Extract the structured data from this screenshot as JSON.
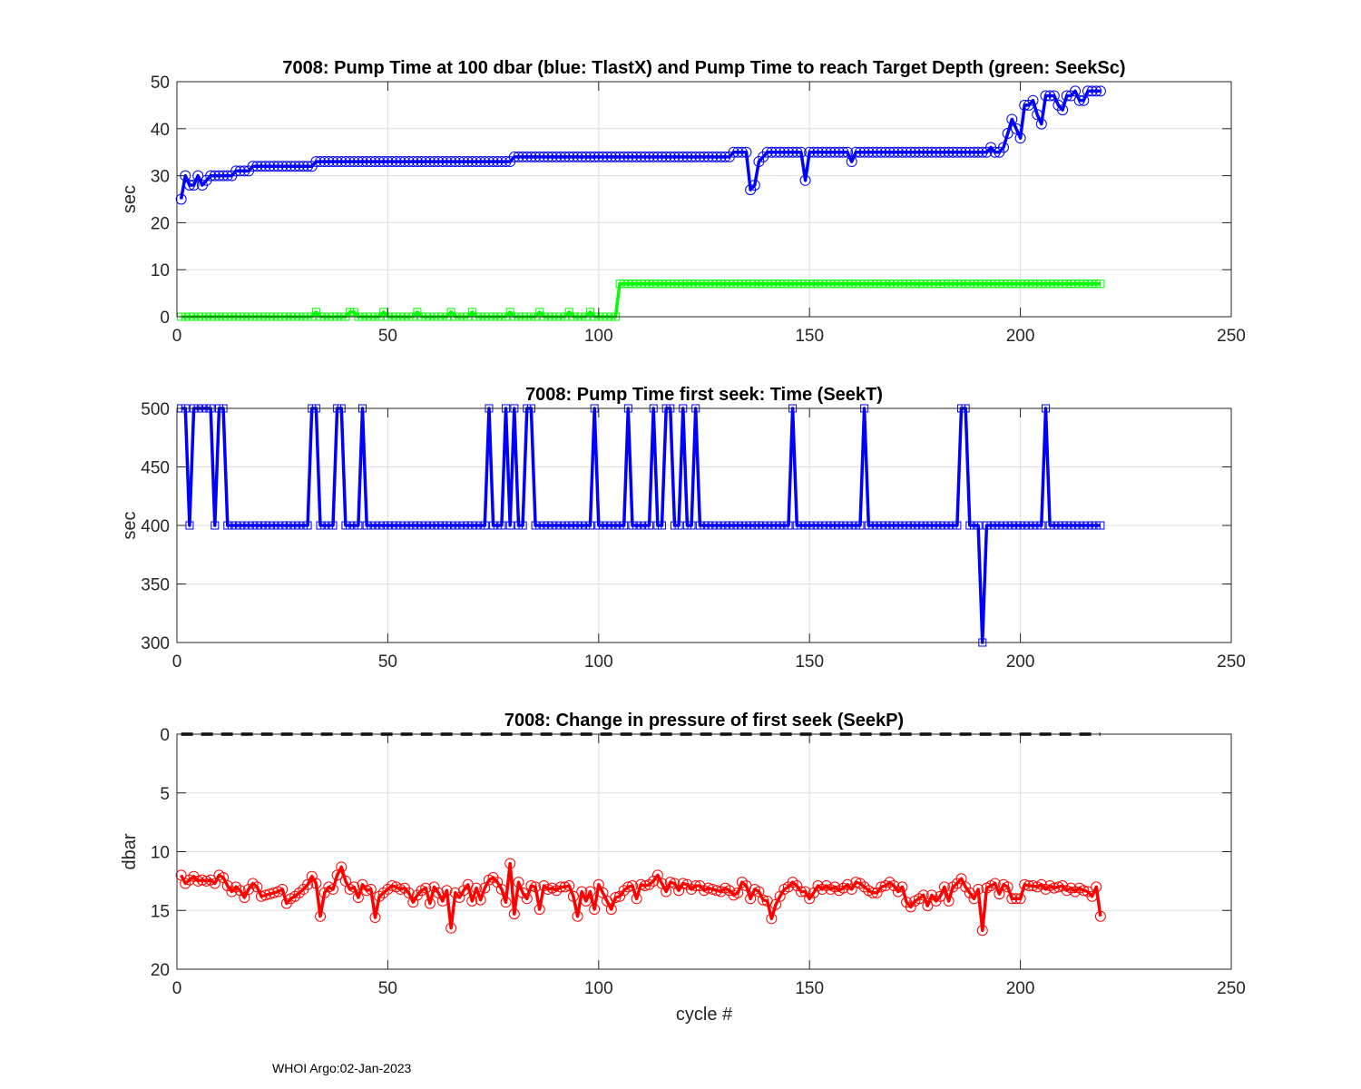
{
  "footer": "WHOI Argo:02-Jan-2023",
  "chart_data": [
    {
      "type": "line",
      "title": "7008:  Pump Time at 100 dbar (blue: TlastX) and Pump Time to reach Target Depth (green: SeekSc)",
      "xlabel": "",
      "ylabel": "sec",
      "xlim": [
        0,
        250
      ],
      "ylim": [
        0,
        50
      ],
      "y_reversed": false,
      "xticks": [
        0,
        50,
        100,
        150,
        200,
        250
      ],
      "yticks": [
        0,
        10,
        20,
        30,
        40,
        50
      ],
      "grid": true,
      "series": [
        {
          "name": "TlastX",
          "color": "#0000ff",
          "marker": "circle",
          "x_start": 1,
          "values": [
            25,
            30,
            28,
            28,
            30,
            28,
            29,
            30,
            30,
            30,
            30,
            30,
            30,
            31,
            31,
            31,
            31,
            32,
            32,
            32,
            32,
            32,
            32,
            32,
            32,
            32,
            32,
            32,
            32,
            32,
            32,
            32,
            33,
            33,
            33,
            33,
            33,
            33,
            33,
            33,
            33,
            33,
            33,
            33,
            33,
            33,
            33,
            33,
            33,
            33,
            33,
            33,
            33,
            33,
            33,
            33,
            33,
            33,
            33,
            33,
            33,
            33,
            33,
            33,
            33,
            33,
            33,
            33,
            33,
            33,
            33,
            33,
            33,
            33,
            33,
            33,
            33,
            33,
            33,
            34,
            34,
            34,
            34,
            34,
            34,
            34,
            34,
            34,
            34,
            34,
            34,
            34,
            34,
            34,
            34,
            34,
            34,
            34,
            34,
            34,
            34,
            34,
            34,
            34,
            34,
            34,
            34,
            34,
            34,
            34,
            34,
            34,
            34,
            34,
            34,
            34,
            34,
            34,
            34,
            34,
            34,
            34,
            34,
            34,
            34,
            34,
            34,
            34,
            34,
            34,
            34,
            35,
            35,
            35,
            35,
            27,
            28,
            33,
            34,
            35,
            35,
            35,
            35,
            35,
            35,
            35,
            35,
            35,
            29,
            35,
            35,
            35,
            35,
            35,
            35,
            35,
            35,
            35,
            35,
            33,
            35,
            35,
            35,
            35,
            35,
            35,
            35,
            35,
            35,
            35,
            35,
            35,
            35,
            35,
            35,
            35,
            35,
            35,
            35,
            35,
            35,
            35,
            35,
            35,
            35,
            35,
            35,
            35,
            35,
            35,
            35,
            35,
            36,
            35,
            35,
            36,
            39,
            42,
            40,
            38,
            45,
            45,
            46,
            43,
            41,
            47,
            47,
            47,
            45,
            44,
            47,
            47,
            48,
            46,
            46,
            48,
            48,
            48,
            48
          ]
        },
        {
          "name": "SeekSc",
          "color": "#00ff00",
          "marker": "square",
          "x_start": 1,
          "values": [
            0,
            0,
            0,
            0,
            0,
            0,
            0,
            0,
            0,
            0,
            0,
            0,
            0,
            0,
            0,
            0,
            0,
            0,
            0,
            0,
            0,
            0,
            0,
            0,
            0,
            0,
            0,
            0,
            0,
            0,
            0,
            0,
            1,
            0,
            0,
            0,
            0,
            0,
            0,
            0,
            1,
            1,
            0,
            0,
            0,
            0,
            0,
            0,
            1,
            0,
            0,
            0,
            0,
            0,
            0,
            0,
            1,
            0,
            0,
            0,
            0,
            0,
            0,
            0,
            1,
            0,
            0,
            0,
            0,
            1,
            0,
            0,
            0,
            0,
            0,
            0,
            0,
            0,
            1,
            0,
            0,
            0,
            0,
            0,
            0,
            1,
            0,
            0,
            0,
            0,
            0,
            0,
            1,
            0,
            0,
            0,
            0,
            1,
            0,
            0,
            0,
            0,
            0,
            0,
            7,
            7,
            7,
            7,
            7,
            7,
            7,
            7,
            7,
            7,
            7,
            7,
            7,
            7,
            7,
            7,
            7,
            7,
            7,
            7,
            7,
            7,
            7,
            7,
            7,
            7,
            7,
            7,
            7,
            7,
            7,
            7,
            7,
            7,
            7,
            7,
            7,
            7,
            7,
            7,
            7,
            7,
            7,
            7,
            7,
            7,
            7,
            7,
            7,
            7,
            7,
            7,
            7,
            7,
            7,
            7,
            7,
            7,
            7,
            7,
            7,
            7,
            7,
            7,
            7,
            7,
            7,
            7,
            7,
            7,
            7,
            7,
            7,
            7,
            7,
            7,
            7,
            7,
            7,
            7,
            7,
            7,
            7,
            7,
            7,
            7,
            7,
            7,
            7,
            7,
            7,
            7,
            7,
            7,
            7,
            7,
            7,
            7,
            7,
            7,
            7,
            7,
            7,
            7,
            7,
            7,
            7,
            7,
            7,
            7,
            7,
            7,
            7,
            7,
            7
          ]
        }
      ]
    },
    {
      "type": "line",
      "title": "7008: Pump Time first seek: Time (SeekT)",
      "xlabel": "",
      "ylabel": "sec",
      "xlim": [
        0,
        250
      ],
      "ylim": [
        300,
        500
      ],
      "y_reversed": false,
      "xticks": [
        0,
        50,
        100,
        150,
        200,
        250
      ],
      "yticks": [
        300,
        350,
        400,
        450,
        500
      ],
      "grid": true,
      "series": [
        {
          "name": "SeekT",
          "color": "#0000ff",
          "marker": "square",
          "x_start": 1,
          "values": [
            500,
            500,
            400,
            500,
            500,
            500,
            500,
            500,
            400,
            500,
            500,
            400,
            400,
            400,
            400,
            400,
            400,
            400,
            400,
            400,
            400,
            400,
            400,
            400,
            400,
            400,
            400,
            400,
            400,
            400,
            400,
            500,
            500,
            400,
            400,
            400,
            400,
            500,
            500,
            400,
            400,
            400,
            400,
            500,
            400,
            400,
            400,
            400,
            400,
            400,
            400,
            400,
            400,
            400,
            400,
            400,
            400,
            400,
            400,
            400,
            400,
            400,
            400,
            400,
            400,
            400,
            400,
            400,
            400,
            400,
            400,
            400,
            400,
            500,
            400,
            400,
            400,
            500,
            400,
            500,
            400,
            400,
            500,
            500,
            400,
            400,
            400,
            400,
            400,
            400,
            400,
            400,
            400,
            400,
            400,
            400,
            400,
            400,
            500,
            400,
            400,
            400,
            400,
            400,
            400,
            400,
            500,
            400,
            400,
            400,
            400,
            400,
            500,
            400,
            400,
            500,
            500,
            400,
            400,
            500,
            400,
            400,
            500,
            400,
            400,
            400,
            400,
            400,
            400,
            400,
            400,
            400,
            400,
            400,
            400,
            400,
            400,
            400,
            400,
            400,
            400,
            400,
            400,
            400,
            400,
            500,
            400,
            400,
            400,
            400,
            400,
            400,
            400,
            400,
            400,
            400,
            400,
            400,
            400,
            400,
            400,
            400,
            500,
            400,
            400,
            400,
            400,
            400,
            400,
            400,
            400,
            400,
            400,
            400,
            400,
            400,
            400,
            400,
            400,
            400,
            400,
            400,
            400,
            400,
            400,
            500,
            500,
            400,
            400,
            400,
            300,
            400,
            400,
            400,
            400,
            400,
            400,
            400,
            400,
            400,
            400,
            400,
            400,
            400,
            400,
            500,
            400,
            400,
            400,
            400,
            400,
            400,
            400,
            400,
            400,
            400,
            400,
            400,
            400
          ]
        }
      ]
    },
    {
      "type": "line",
      "title": "7008: Change in pressure of first seek (SeekP)",
      "xlabel": "cycle #",
      "ylabel": "dbar",
      "xlim": [
        0,
        250
      ],
      "ylim": [
        0,
        20
      ],
      "y_reversed": true,
      "xticks": [
        0,
        50,
        100,
        150,
        200,
        250
      ],
      "yticks": [
        0,
        5,
        10,
        15,
        20
      ],
      "grid": true,
      "reference_line": {
        "y": 0,
        "x": [
          1,
          219
        ],
        "color": "#000000",
        "style": "dashed"
      },
      "series": [
        {
          "name": "SeekP",
          "color": "#ff0000",
          "marker": "circle",
          "x_start": 1,
          "values": [
            12,
            12.7,
            12.4,
            12.1,
            12.5,
            12.4,
            12.5,
            12.4,
            12.7,
            12.0,
            12.2,
            12.9,
            13.4,
            13.0,
            13.3,
            13.9,
            13.2,
            12.7,
            13.0,
            13.8,
            13.7,
            13.6,
            13.5,
            13.4,
            13.2,
            14.4,
            14.0,
            13.8,
            13.5,
            13.2,
            12.8,
            12.1,
            12.7,
            15.5,
            13.5,
            13.0,
            13.2,
            12.0,
            11.3,
            12.5,
            13.2,
            13.0,
            13.9,
            12.8,
            13.3,
            13.2,
            15.6,
            13.8,
            13.5,
            13.2,
            12.9,
            13.0,
            13.2,
            13.1,
            13.5,
            14.3,
            13.7,
            13.3,
            13.1,
            14.4,
            13.0,
            13.5,
            14.2,
            13.3,
            16.5,
            13.5,
            13.9,
            13.3,
            12.8,
            14.2,
            13.1,
            14.1,
            13.1,
            12.4,
            12.2,
            12.6,
            13.2,
            14.3,
            11.0,
            15.3,
            12.6,
            13.5,
            14.0,
            12.9,
            13.0,
            14.9,
            12.9,
            13.2,
            13.1,
            13.3,
            13.0,
            13.0,
            12.9,
            13.8,
            15.5,
            13.4,
            14.2,
            13.4,
            14.9,
            12.8,
            13.5,
            14.2,
            14.9,
            13.9,
            13.8,
            13.3,
            13.0,
            12.9,
            14.0,
            12.8,
            12.9,
            12.8,
            12.5,
            12.0,
            12.7,
            13.4,
            12.6,
            12.7,
            13.3,
            12.7,
            12.8,
            13.2,
            12.9,
            12.9,
            13.3,
            13.1,
            13.2,
            13.3,
            13.4,
            13.1,
            13.3,
            13.7,
            13.5,
            12.6,
            12.9,
            14.0,
            13.2,
            13.4,
            14.1,
            14.2,
            15.7,
            14.5,
            13.8,
            13.2,
            13.0,
            12.6,
            12.9,
            13.4,
            13.4,
            14.0,
            13.5,
            12.9,
            13.2,
            12.9,
            13.2,
            13.0,
            13.3,
            13.1,
            12.8,
            13.2,
            12.6,
            12.7,
            13.0,
            13.3,
            13.5,
            13.5,
            13.0,
            12.9,
            12.6,
            12.9,
            13.4,
            13.0,
            14.3,
            14.7,
            14.2,
            14.0,
            13.7,
            14.6,
            13.7,
            14.2,
            13.8,
            13.0,
            14.2,
            13.0,
            12.7,
            12.3,
            13.0,
            13.5,
            14.0,
            13.2,
            16.7,
            13.1,
            12.9,
            12.7,
            13.6,
            12.8,
            13.0,
            14.0,
            14.0,
            14.0,
            12.8,
            12.9,
            12.9,
            13.0,
            12.8,
            13.2,
            12.9,
            13.1,
            13.0,
            12.9,
            13.3,
            13.1,
            13.4,
            13.1,
            13.3,
            13.4,
            13.8,
            13.0,
            15.5
          ]
        }
      ]
    }
  ]
}
